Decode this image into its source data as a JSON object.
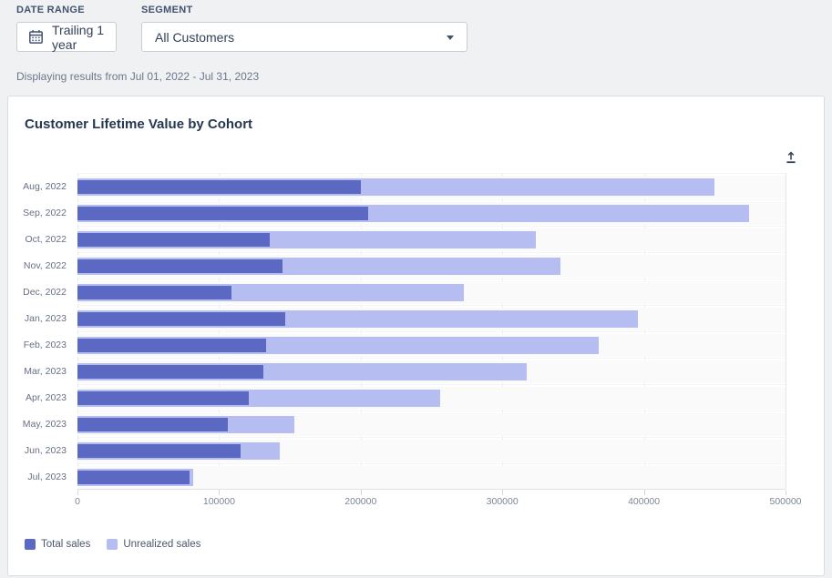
{
  "header": {
    "date_range_label": "DATE RANGE",
    "date_range_value": "Trailing 1 year",
    "segment_label": "SEGMENT",
    "segment_value": "All Customers",
    "results_text": "Displaying results from Jul 01, 2022 - Jul 31, 2023"
  },
  "card": {
    "title": "Customer Lifetime Value by Cohort"
  },
  "icons": {
    "calendar": "calendar-icon",
    "caret": "chevron-down-icon",
    "export": "export-upload-icon"
  },
  "colors": {
    "total_sales": "#5b69c2",
    "unrealized_sales": "#b5bdf1",
    "page_background": "#f0f1f3",
    "card_background": "#ffffff"
  },
  "chart_data": {
    "type": "bar",
    "orientation": "horizontal",
    "stacked": true,
    "title": "Customer Lifetime Value by Cohort",
    "categories": [
      "Aug, 2022",
      "Sep, 2022",
      "Oct, 2022",
      "Nov, 2022",
      "Dec, 2022",
      "Jan, 2023",
      "Feb, 2023",
      "Mar, 2023",
      "Apr, 2023",
      "May, 2023",
      "Jun, 2023",
      "Jul, 2023"
    ],
    "series": [
      {
        "name": "Total sales",
        "color": "#5b69c2",
        "values": [
          200000,
          205000,
          136000,
          145000,
          109000,
          147000,
          133000,
          131000,
          121000,
          106000,
          115000,
          79000
        ]
      },
      {
        "name": "Unrealized sales",
        "color": "#b5bdf1",
        "values": [
          250000,
          269000,
          188000,
          196000,
          164000,
          249000,
          235000,
          186000,
          135000,
          47000,
          28000,
          3000
        ]
      }
    ],
    "xlabel": "",
    "ylabel": "",
    "xlim": [
      0,
      500000
    ],
    "x_ticks": [
      0,
      100000,
      200000,
      300000,
      400000,
      500000
    ],
    "x_tick_labels": [
      "0",
      "100000",
      "200000",
      "300000",
      "400000",
      "500000"
    ],
    "grid": "vertical",
    "legend_position": "bottom"
  }
}
